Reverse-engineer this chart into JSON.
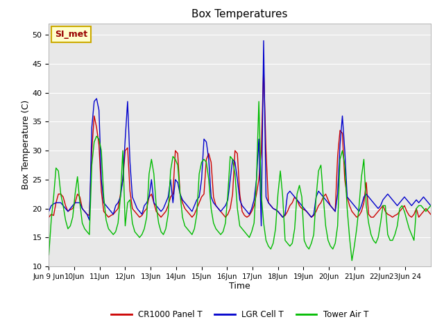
{
  "title": "Box Temperatures",
  "xlabel": "Time",
  "ylabel": "Box Temperature (C)",
  "ylim": [
    10,
    52
  ],
  "bg_color": "#e8e8e8",
  "annotation_text": "SI_met",
  "annotation_bg": "#ffffcc",
  "annotation_border": "#ccaa00",
  "annotation_text_color": "#990000",
  "legend_labels": [
    "CR1000 Panel T",
    "LGR Cell T",
    "Tower Air T"
  ],
  "legend_colors": [
    "#cc0000",
    "#0000cc",
    "#00bb00"
  ],
  "tick_labels": [
    "Jun 9 Jun",
    "10Jun",
    "11Jun",
    "12Jun",
    "13Jun",
    "14Jun",
    "15Jun",
    "16Jun",
    "17Jun",
    "18Jun",
    "19Jun",
    "20Jun",
    "21Jun",
    "22Jun",
    "23Jun 24"
  ],
  "cr1000": [
    18.5,
    19.0,
    18.8,
    21.0,
    22.5,
    22.5,
    22.0,
    20.5,
    19.5,
    19.8,
    20.0,
    21.0,
    22.5,
    22.0,
    20.0,
    19.5,
    19.0,
    18.8,
    30.0,
    36.0,
    34.0,
    31.0,
    23.0,
    19.5,
    19.0,
    18.5,
    18.8,
    19.0,
    19.5,
    20.0,
    22.5,
    25.0,
    30.0,
    30.5,
    23.0,
    20.0,
    19.5,
    19.0,
    18.5,
    18.8,
    19.5,
    20.0,
    22.0,
    22.5,
    21.0,
    19.5,
    19.0,
    18.5,
    19.0,
    19.5,
    20.5,
    22.0,
    22.5,
    30.0,
    29.5,
    22.5,
    21.0,
    20.0,
    19.5,
    19.0,
    18.5,
    19.0,
    20.0,
    21.0,
    22.0,
    22.5,
    28.5,
    29.5,
    28.0,
    22.0,
    20.5,
    20.0,
    19.5,
    19.0,
    18.5,
    19.0,
    20.0,
    22.5,
    30.0,
    29.5,
    22.5,
    19.5,
    18.8,
    18.5,
    18.8,
    19.5,
    20.5,
    22.5,
    25.0,
    30.0,
    44.5,
    30.0,
    21.0,
    20.5,
    20.0,
    19.8,
    19.5,
    19.0,
    18.5,
    18.8,
    19.5,
    20.5,
    21.0,
    22.0,
    21.5,
    20.5,
    20.0,
    19.8,
    19.5,
    19.0,
    18.5,
    18.8,
    19.5,
    20.5,
    21.0,
    22.0,
    22.5,
    21.5,
    20.5,
    20.0,
    19.5,
    29.0,
    33.5,
    33.0,
    25.0,
    22.0,
    20.5,
    19.5,
    19.0,
    18.5,
    18.8,
    19.5,
    21.0,
    24.5,
    19.0,
    18.5,
    18.5,
    19.0,
    19.5,
    20.0,
    20.5,
    19.5,
    19.0,
    18.8,
    18.5,
    18.8,
    19.0,
    19.5,
    20.0,
    20.5,
    19.5,
    18.8,
    18.5,
    19.0,
    20.0,
    18.5,
    19.0,
    19.5,
    20.0,
    19.5,
    19.0
  ],
  "lgr": [
    19.5,
    20.5,
    20.8,
    21.0,
    21.0,
    21.0,
    20.5,
    20.0,
    19.5,
    20.0,
    20.5,
    21.0,
    21.0,
    21.0,
    20.0,
    19.5,
    19.0,
    18.0,
    34.0,
    38.5,
    39.0,
    37.0,
    25.0,
    21.0,
    20.5,
    20.0,
    19.5,
    19.0,
    20.5,
    21.0,
    22.0,
    25.0,
    32.0,
    38.5,
    28.0,
    22.0,
    21.0,
    20.0,
    19.5,
    19.0,
    20.5,
    21.0,
    22.0,
    25.0,
    21.0,
    20.5,
    20.0,
    19.5,
    20.0,
    21.0,
    22.0,
    25.0,
    21.0,
    25.0,
    24.5,
    22.5,
    21.5,
    21.0,
    20.5,
    20.0,
    19.5,
    20.5,
    21.5,
    22.0,
    25.0,
    32.0,
    31.5,
    28.5,
    22.0,
    21.0,
    20.5,
    20.0,
    19.5,
    20.0,
    20.5,
    21.5,
    25.0,
    28.5,
    28.0,
    25.0,
    21.5,
    20.5,
    20.0,
    19.5,
    19.0,
    20.0,
    21.5,
    25.0,
    32.0,
    17.0,
    49.0,
    22.0,
    21.0,
    20.5,
    20.0,
    19.8,
    19.5,
    19.0,
    18.5,
    19.0,
    22.5,
    23.0,
    22.5,
    22.0,
    21.5,
    21.0,
    20.5,
    20.0,
    19.5,
    19.0,
    18.5,
    19.0,
    22.0,
    23.0,
    22.5,
    22.0,
    21.5,
    21.0,
    20.5,
    20.0,
    19.5,
    22.5,
    31.0,
    36.0,
    30.0,
    22.0,
    21.5,
    21.0,
    20.5,
    20.0,
    19.5,
    20.5,
    22.0,
    22.5,
    22.0,
    21.5,
    21.0,
    20.5,
    20.0,
    20.5,
    21.5,
    22.0,
    22.5,
    22.0,
    21.5,
    21.0,
    20.5,
    21.0,
    21.5,
    22.0,
    21.5,
    21.0,
    20.5,
    21.0,
    21.5,
    21.0,
    21.5,
    22.0,
    21.5,
    21.0,
    20.5
  ],
  "tower": [
    12.0,
    18.0,
    22.0,
    27.0,
    26.5,
    22.5,
    20.5,
    18.0,
    16.5,
    17.0,
    18.5,
    22.5,
    25.5,
    21.0,
    17.5,
    16.5,
    16.0,
    15.5,
    27.5,
    31.5,
    32.5,
    32.0,
    30.0,
    22.0,
    18.0,
    16.5,
    16.0,
    15.5,
    16.0,
    17.5,
    22.0,
    30.0,
    17.0,
    21.0,
    21.5,
    17.5,
    16.0,
    15.5,
    15.0,
    15.5,
    16.5,
    18.5,
    26.0,
    28.5,
    26.0,
    20.5,
    17.5,
    16.0,
    15.5,
    16.5,
    19.0,
    26.5,
    29.0,
    28.5,
    27.5,
    22.5,
    18.5,
    17.0,
    16.5,
    16.0,
    15.5,
    16.5,
    19.0,
    26.0,
    28.0,
    28.5,
    28.0,
    25.0,
    20.0,
    17.5,
    16.5,
    16.0,
    15.5,
    16.0,
    17.5,
    22.5,
    29.0,
    28.5,
    26.0,
    20.0,
    17.0,
    16.5,
    16.0,
    15.5,
    15.0,
    16.0,
    17.5,
    25.0,
    38.5,
    22.5,
    17.5,
    14.5,
    13.5,
    13.0,
    14.0,
    16.5,
    22.5,
    26.5,
    22.0,
    14.5,
    14.0,
    13.5,
    14.0,
    16.5,
    22.5,
    24.0,
    22.0,
    14.5,
    13.5,
    13.0,
    14.0,
    15.5,
    22.0,
    26.5,
    27.5,
    22.0,
    17.0,
    14.5,
    13.5,
    13.0,
    14.0,
    17.0,
    28.5,
    30.0,
    27.5,
    20.0,
    15.0,
    11.0,
    13.5,
    16.5,
    20.5,
    25.5,
    28.5,
    20.5,
    17.5,
    15.5,
    14.5,
    14.0,
    15.0,
    17.5,
    20.5,
    20.5,
    15.5,
    14.5,
    14.5,
    15.5,
    17.0,
    20.0,
    20.5,
    19.5,
    18.0,
    16.5,
    15.5,
    14.5,
    20.0,
    20.5,
    20.5,
    20.0,
    19.5,
    20.0,
    20.5
  ]
}
